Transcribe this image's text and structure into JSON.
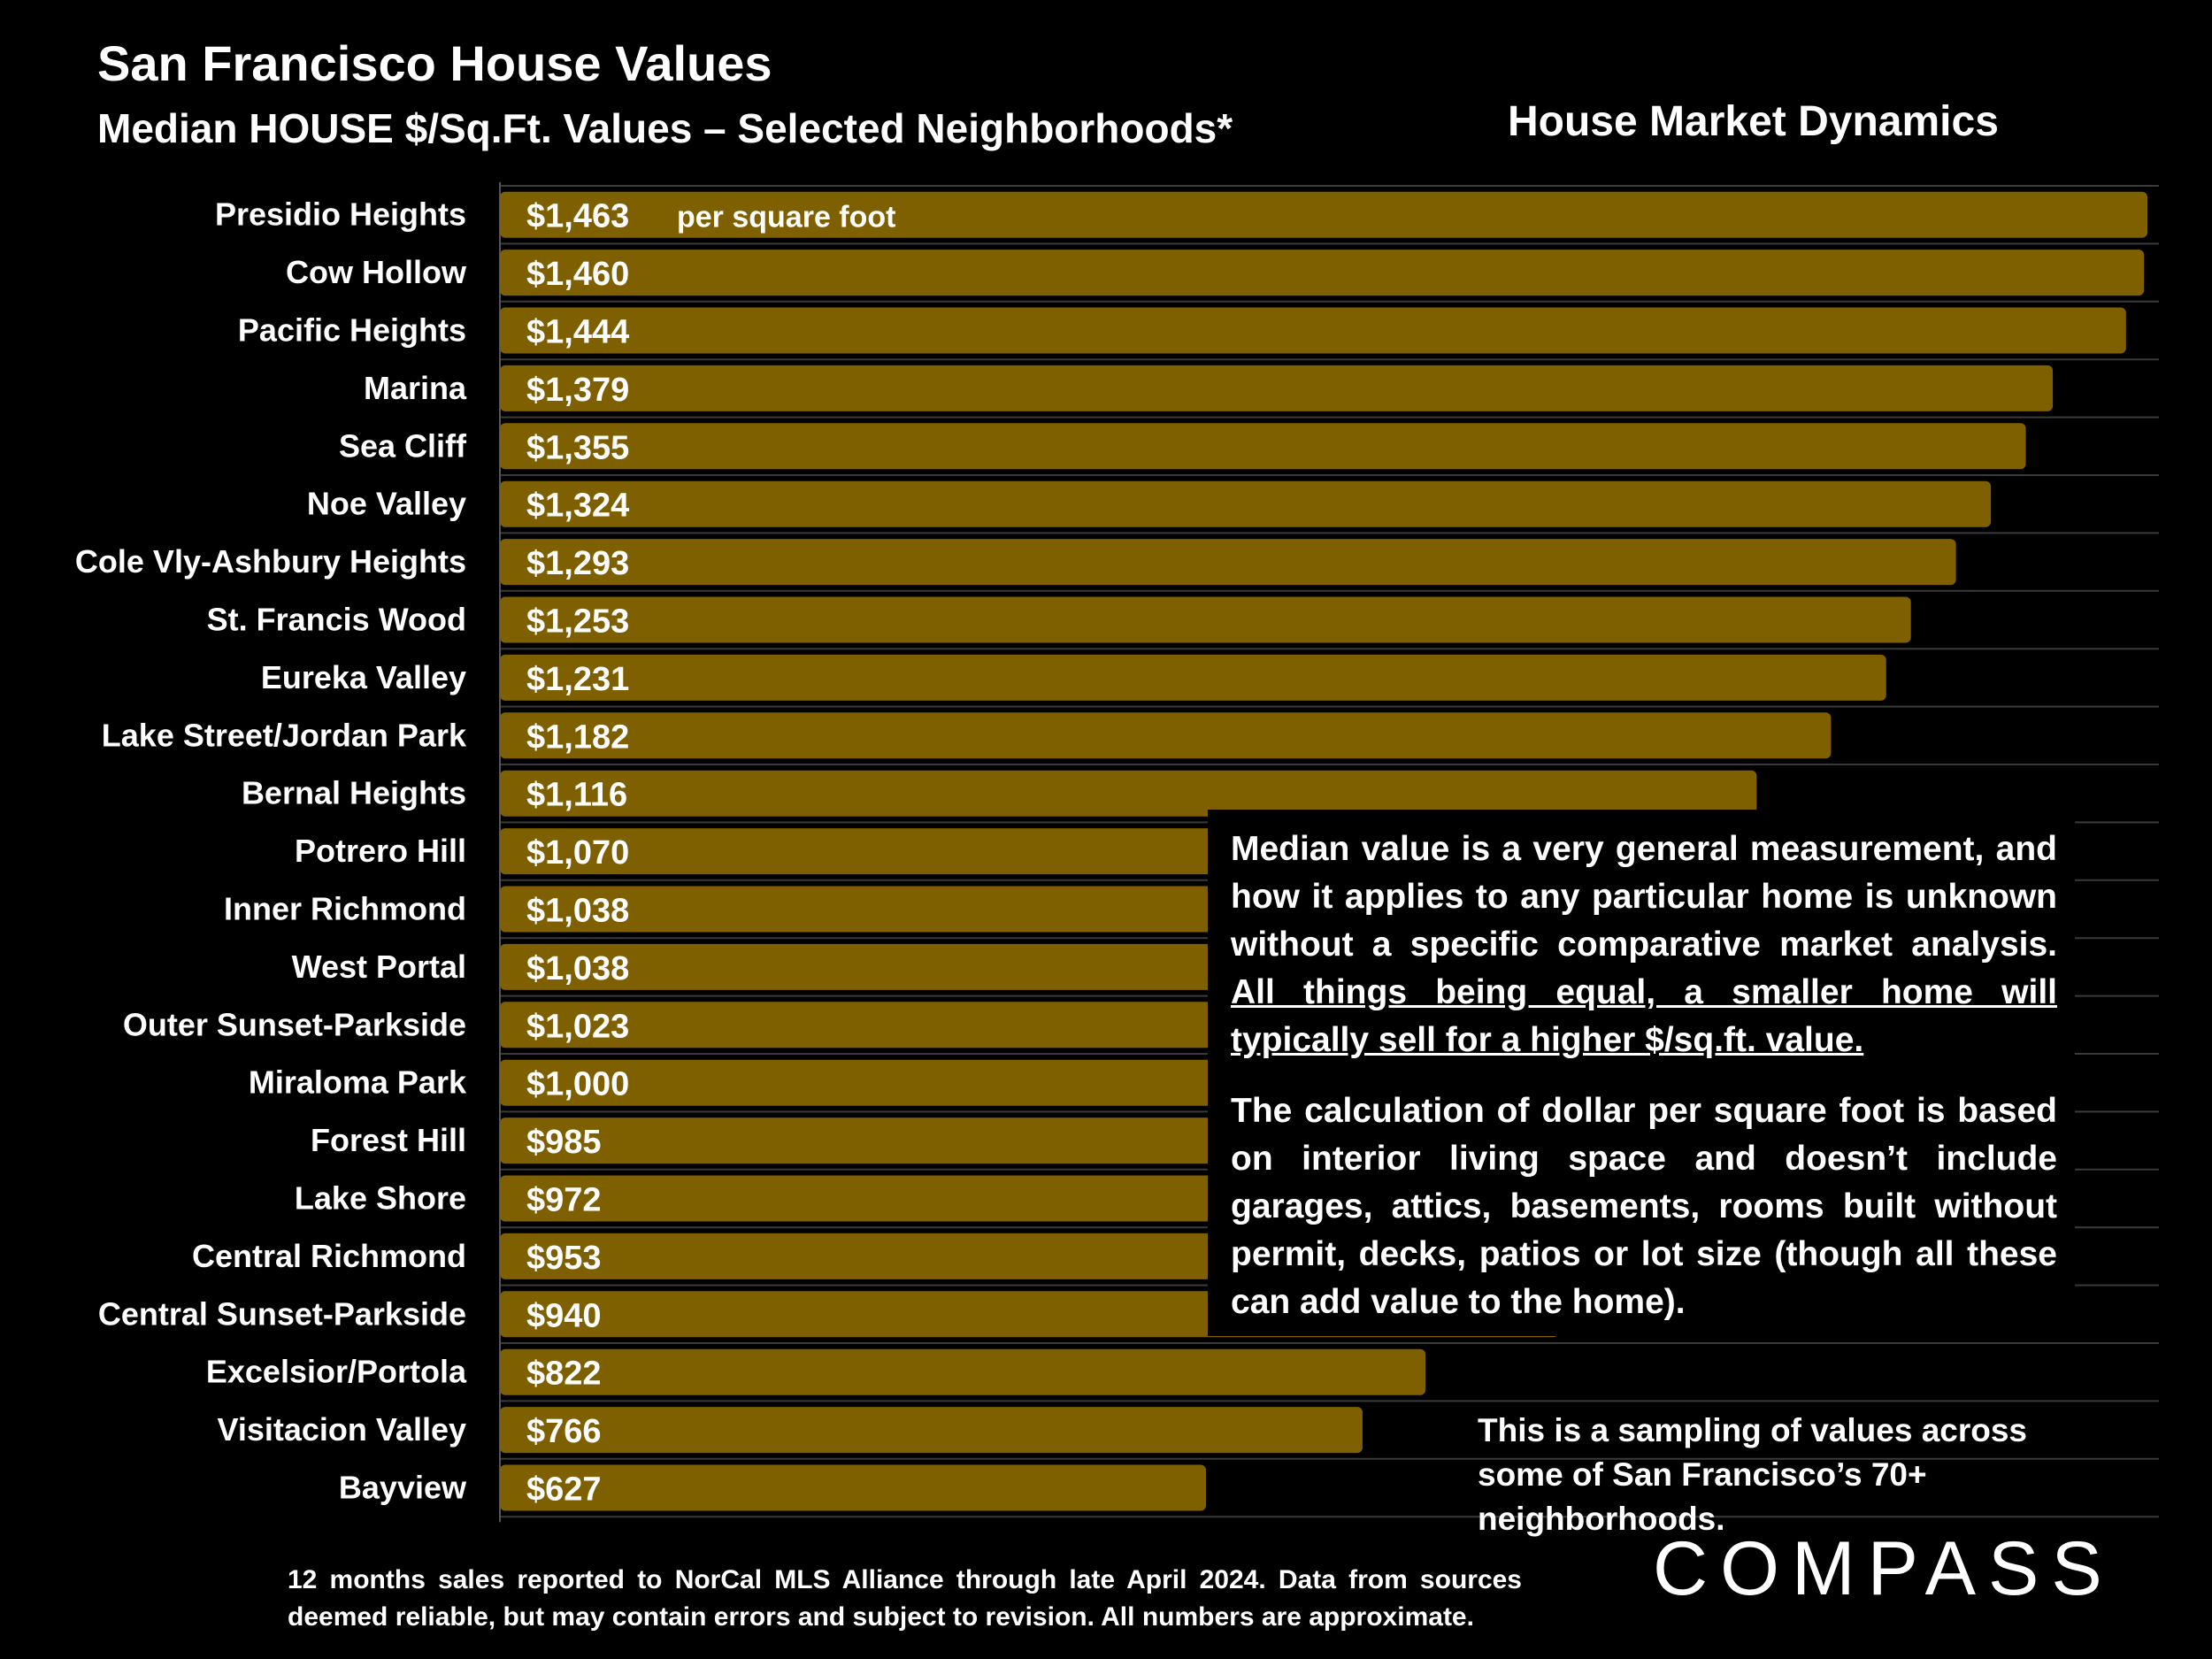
{
  "header": {
    "title": "San Francisco House Values",
    "subtitle": "Median HOUSE $/Sq.Ft. Values – Selected Neighborhoods*",
    "right_title": "House Market Dynamics"
  },
  "chart_data": {
    "type": "bar",
    "orientation": "horizontal",
    "title": "Median HOUSE $/Sq.Ft. Values – Selected Neighborhoods*",
    "unit_annotation": "per square foot",
    "categories": [
      "Presidio Heights",
      "Cow Hollow",
      "Pacific Heights",
      "Marina",
      "Sea Cliff",
      "Noe Valley",
      "Cole Vly-Ashbury Heights",
      "St. Francis Wood",
      "Eureka Valley",
      "Lake Street/Jordan Park",
      "Bernal Heights",
      "Potrero Hill",
      "Inner Richmond",
      "West Portal",
      "Outer Sunset-Parkside",
      "Miraloma Park",
      "Forest Hill",
      "Lake Shore",
      "Central Richmond",
      "Central Sunset-Parkside",
      "Excelsior/Portola",
      "Visitacion Valley",
      "Bayview"
    ],
    "values": [
      1463,
      1460,
      1444,
      1379,
      1355,
      1324,
      1293,
      1253,
      1231,
      1182,
      1116,
      1070,
      1038,
      1038,
      1023,
      1000,
      985,
      972,
      953,
      940,
      822,
      766,
      627
    ],
    "labels": [
      "$1,463",
      "$1,460",
      "$1,444",
      "$1,379",
      "$1,355",
      "$1,324",
      "$1,293",
      "$1,253",
      "$1,231",
      "$1,182",
      "$1,116",
      "$1,070",
      "$1,038",
      "$1,038",
      "$1,023",
      "$1,000",
      "$985",
      "$972",
      "$953",
      "$940",
      "$822",
      "$766",
      "$627"
    ],
    "xlim": [
      0,
      1463
    ],
    "bar_color": "#7f6000",
    "grid": "horizontal lines between rows"
  },
  "notes": {
    "note1_plain": "Median value is a very general measurement, and how it applies to any particular home is unknown without a specific comparative market analysis. ",
    "note1_underlined": "All things being equal, a smaller home will typically sell for a higher $/sq.ft. value.",
    "note2": "The calculation of dollar per square foot is based on interior living space and doesn’t include garages, attics, basements, rooms built without permit, decks, patios or lot size (though all these can add value to the home).",
    "sampling": "This is a sampling of values across some of San Francisco’s 70+ neighborhoods."
  },
  "footnote": "12 months sales reported to NorCal MLS Alliance through late April 2024. Data from sources deemed reliable, but may contain errors and subject to revision. All numbers are approximate.",
  "logo": "COMPASS"
}
